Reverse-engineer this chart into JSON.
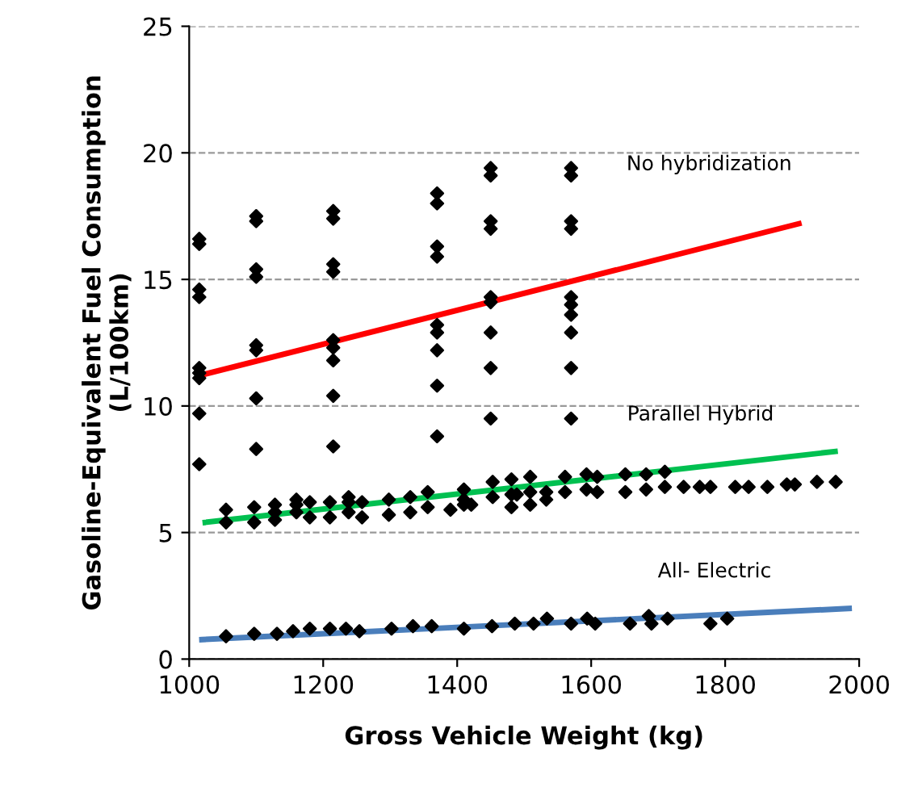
{
  "chart_data": {
    "type": "scatter",
    "xlabel": "Gross Vehicle Weight (kg)",
    "ylabel": "Gasoline-Equivalent Fuel Consumption\n(L/100km)",
    "xlim": [
      1000,
      2000
    ],
    "ylim": [
      0,
      25
    ],
    "xticks": [
      1000,
      1200,
      1400,
      1600,
      1800,
      2000
    ],
    "yticks": [
      0,
      5,
      10,
      15,
      20,
      25
    ],
    "grid": "y",
    "legend": false,
    "series": [
      {
        "marker": "diamond",
        "color": "#000000",
        "x": [
          1015,
          1015,
          1015,
          1015,
          1015,
          1015,
          1015,
          1015,
          1015,
          1100,
          1100,
          1100,
          1100,
          1100,
          1100,
          1100,
          1100,
          1215,
          1215,
          1215,
          1215,
          1215,
          1215,
          1215,
          1215,
          1215,
          1370,
          1370,
          1370,
          1370,
          1370,
          1370,
          1370,
          1370,
          1370,
          1450,
          1450,
          1450,
          1450,
          1450,
          1450,
          1450,
          1450,
          1450,
          1570,
          1570,
          1570,
          1570,
          1570,
          1570,
          1570,
          1570,
          1570,
          1570
        ],
        "values": [
          16.6,
          16.4,
          14.6,
          14.3,
          11.5,
          11.3,
          11.1,
          9.7,
          7.7,
          17.5,
          17.3,
          15.4,
          15.1,
          12.4,
          12.2,
          10.3,
          8.3,
          17.7,
          17.4,
          15.6,
          15.3,
          12.6,
          12.3,
          11.8,
          10.4,
          8.4,
          18.4,
          18.0,
          16.3,
          15.9,
          13.2,
          12.9,
          12.2,
          10.8,
          8.8,
          19.4,
          19.1,
          17.3,
          17.0,
          14.3,
          14.1,
          12.9,
          11.5,
          9.5,
          19.4,
          19.1,
          17.3,
          17.0,
          14.3,
          14.0,
          13.6,
          12.9,
          11.5,
          9.5
        ]
      },
      {
        "marker": "diamond",
        "color": "#000000",
        "x": [
          1055,
          1055,
          1097,
          1097,
          1128,
          1128,
          1128,
          1160,
          1160,
          1160,
          1180,
          1180,
          1210,
          1210,
          1238,
          1238,
          1238,
          1258,
          1258,
          1298,
          1298,
          1330,
          1330,
          1356,
          1356,
          1390,
          1410,
          1410,
          1410,
          1421,
          1453,
          1453,
          1481,
          1481,
          1481,
          1489,
          1509,
          1509,
          1509,
          1533,
          1533,
          1561,
          1561,
          1593,
          1593,
          1609,
          1609,
          1651,
          1651,
          1682,
          1682,
          1710,
          1710,
          1738,
          1762,
          1778,
          1815,
          1835,
          1863,
          1892,
          1904,
          1937,
          1965
        ],
        "values": [
          5.9,
          5.4,
          6.0,
          5.4,
          6.1,
          5.8,
          5.5,
          6.3,
          6.1,
          5.8,
          6.2,
          5.6,
          6.2,
          5.6,
          6.4,
          6.2,
          5.8,
          6.2,
          5.6,
          6.3,
          5.7,
          6.4,
          5.8,
          6.6,
          6.0,
          5.9,
          6.7,
          6.3,
          6.1,
          6.1,
          7.0,
          6.4,
          7.1,
          6.5,
          6.0,
          6.5,
          7.2,
          6.6,
          6.1,
          6.6,
          6.3,
          7.2,
          6.6,
          7.3,
          6.7,
          7.2,
          6.6,
          7.3,
          6.6,
          7.3,
          6.7,
          7.4,
          6.8,
          6.8,
          6.8,
          6.8,
          6.8,
          6.8,
          6.8,
          6.9,
          6.9,
          7.0,
          7.0
        ]
      },
      {
        "marker": "diamond",
        "color": "#000000",
        "x": [
          1055,
          1097,
          1131,
          1155,
          1180,
          1210,
          1234,
          1254,
          1302,
          1334,
          1362,
          1410,
          1452,
          1486,
          1514,
          1534,
          1570,
          1594,
          1606,
          1658,
          1686,
          1690,
          1714,
          1778,
          1803
        ],
        "values": [
          0.9,
          1.0,
          1.0,
          1.1,
          1.2,
          1.2,
          1.2,
          1.1,
          1.2,
          1.3,
          1.3,
          1.2,
          1.3,
          1.4,
          1.4,
          1.6,
          1.4,
          1.6,
          1.4,
          1.4,
          1.7,
          1.4,
          1.6,
          1.4,
          1.6
        ]
      },
      {
        "type": "line",
        "marker": "none",
        "name": "No hybridization",
        "color": "#ff0000",
        "x": [
          1015,
          1910
        ],
        "values": [
          11.2,
          17.2
        ]
      },
      {
        "type": "line",
        "marker": "none",
        "name": "Parallel Hybrid",
        "color": "#00c050",
        "x": [
          1024,
          1964
        ],
        "values": [
          5.4,
          8.2
        ]
      },
      {
        "type": "line",
        "marker": "none",
        "name": "All- Electric",
        "color": "#4a7ebb",
        "x": [
          1019,
          1985
        ],
        "values": [
          0.77,
          2.0
        ]
      }
    ]
  }
}
